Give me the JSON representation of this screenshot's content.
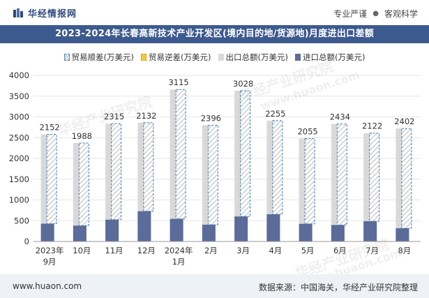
{
  "header": {
    "brand": "华经情报网",
    "tags": [
      "专业严谨",
      "客观科学"
    ],
    "title": "2023-2024年长春高新技术产业开发区(境内目的地/货源地)月度进出口差额"
  },
  "legend": {
    "surplus": "贸易顺差(万美元)",
    "deficit": "贸易逆差(万美元)",
    "export": "出口总额(万美元)",
    "import": "进口总额(万美元)"
  },
  "watermark": "华经产业研究院",
  "watermark_url": "www.huaon.com",
  "chart_data": {
    "type": "bar",
    "title": "2023-2024年长春高新技术产业开发区(境内目的地/货源地)月度进出口差额",
    "categories": [
      [
        "2023年",
        "9月"
      ],
      [
        "10月"
      ],
      [
        "11月"
      ],
      [
        "12月"
      ],
      [
        "2024年",
        "1月"
      ],
      [
        "2月"
      ],
      [
        "3月"
      ],
      [
        "4月"
      ],
      [
        "5月"
      ],
      [
        "6月"
      ],
      [
        "7月"
      ],
      [
        "8月"
      ]
    ],
    "ylim": [
      0,
      4000
    ],
    "yticks": [
      0,
      500,
      1000,
      1500,
      2000,
      2500,
      3000,
      3500,
      4000
    ],
    "series": [
      {
        "name": "贸易顺差(万美元)",
        "values": [
          2152,
          1988,
          2315,
          2132,
          3115,
          2396,
          3028,
          2255,
          2055,
          2434,
          2122,
          2402
        ]
      },
      {
        "name": "贸易逆差(万美元)",
        "values": [
          0,
          0,
          0,
          0,
          0,
          0,
          0,
          0,
          0,
          0,
          0,
          0
        ]
      },
      {
        "name": "出口总额(万美元)",
        "values": [
          2580,
          2370,
          2840,
          2860,
          3660,
          2800,
          3630,
          2910,
          2480,
          2830,
          2610,
          2720
        ]
      },
      {
        "name": "进口总额(万美元)",
        "values": [
          428,
          382,
          525,
          728,
          545,
          404,
          602,
          655,
          425,
          396,
          488,
          318
        ]
      }
    ],
    "colors": {
      "surplus_border": "#3b7fc0",
      "export": "#d9d9d9",
      "import": "#5b6b9a",
      "deficit": "#f3c93a"
    }
  },
  "footer": {
    "website": "www.huaon.com",
    "source": "数据来源：中国海关，华经产业研究院整理"
  }
}
